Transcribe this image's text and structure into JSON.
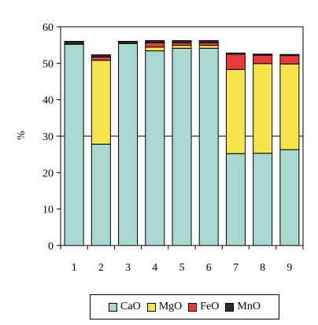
{
  "chart_data": {
    "type": "bar",
    "stacked": true,
    "categories": [
      "1",
      "2",
      "3",
      "4",
      "5",
      "6",
      "7",
      "8",
      "9"
    ],
    "ylabel": "%",
    "ylim": [
      0,
      60
    ],
    "yticks": [
      0,
      10,
      20,
      30,
      40,
      50,
      60
    ],
    "reference_line": 30,
    "legend_position": "bottom",
    "series": [
      {
        "name": "CaO",
        "color": "#a8d8d0",
        "values": [
          55.2,
          27.8,
          55.4,
          53.4,
          54.1,
          54.1,
          25.2,
          25.3,
          26.3
        ]
      },
      {
        "name": "MgO",
        "color": "#f5e44a",
        "values": [
          0,
          23.0,
          0,
          1.0,
          0.8,
          0.8,
          23.1,
          24.6,
          23.5
        ]
      },
      {
        "name": "FeO",
        "color": "#e63b3b",
        "values": [
          0,
          0.9,
          0,
          1.2,
          0.7,
          0.7,
          4.2,
          2.3,
          2.3
        ]
      },
      {
        "name": "MnO",
        "color": "#2b2b2b",
        "values": [
          0.8,
          0.6,
          0.6,
          0.6,
          0.6,
          0.6,
          0.3,
          0.3,
          0.3
        ]
      }
    ]
  }
}
